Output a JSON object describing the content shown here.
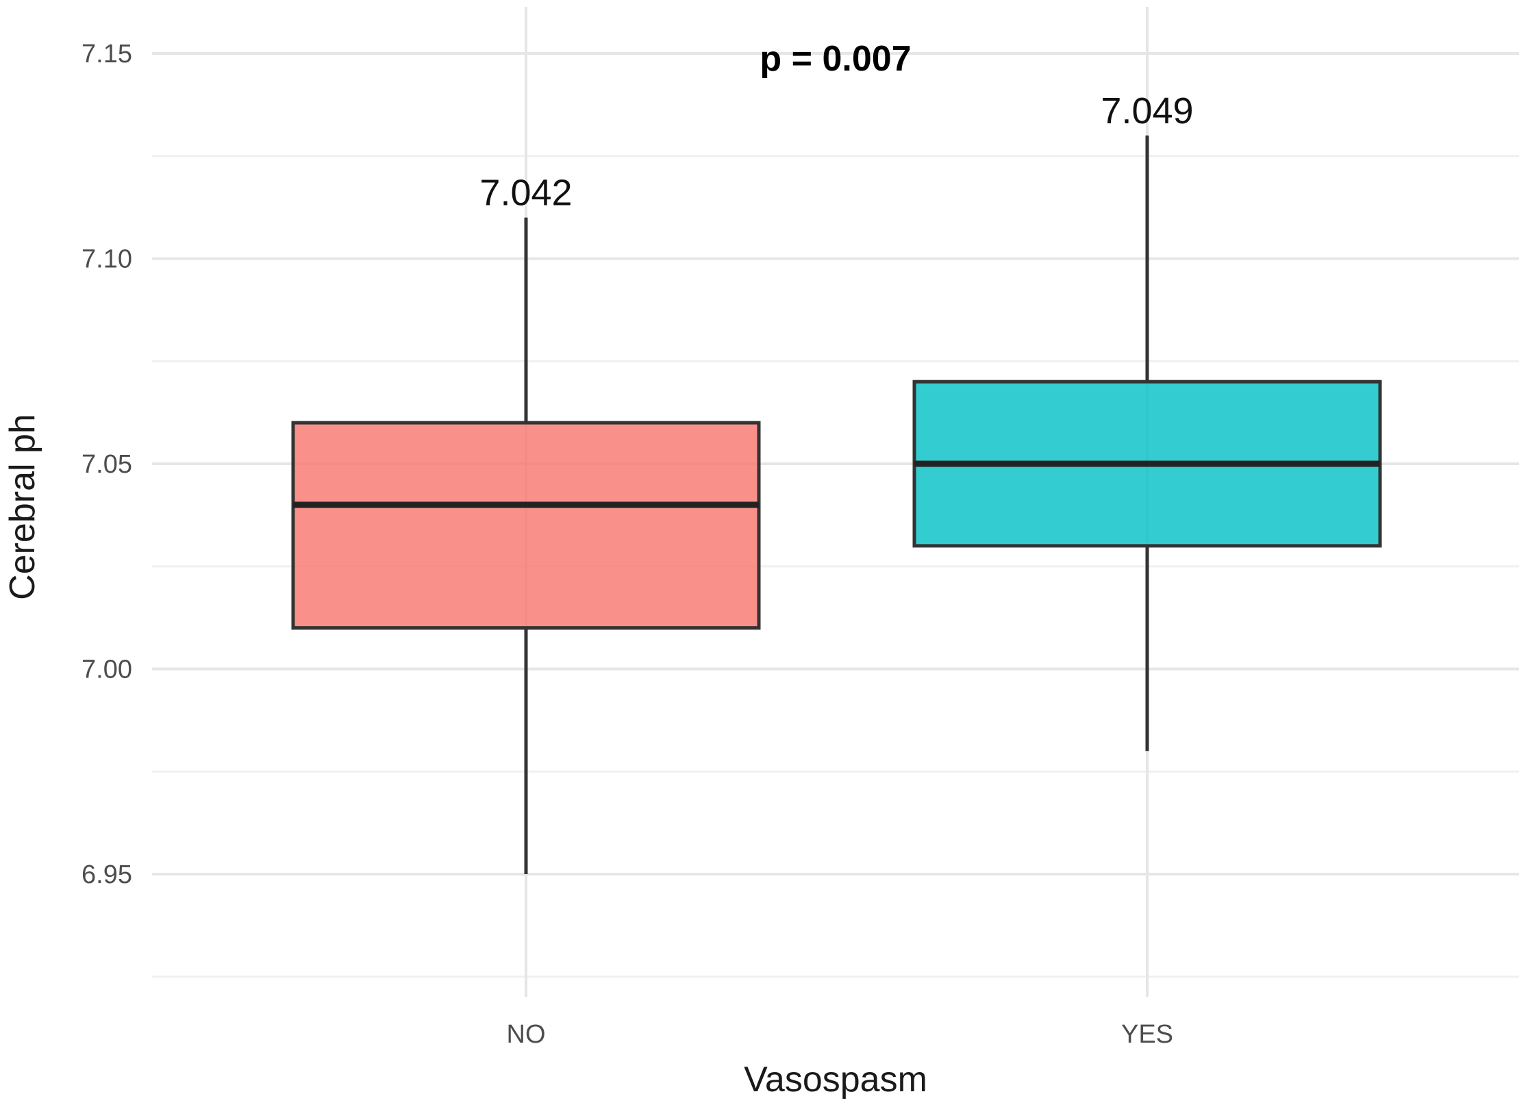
{
  "chart_data": {
    "type": "boxplot",
    "xlabel": "Vasospasm",
    "ylabel": "Cerebral ph",
    "ylim": [
      6.92,
      7.16
    ],
    "y_ticks": [
      6.95,
      7.0,
      7.05,
      7.1,
      7.15
    ],
    "y_tick_labels": [
      "6.95",
      "7.00",
      "7.05",
      "7.10",
      "7.15"
    ],
    "categories": [
      "NO",
      "YES"
    ],
    "grid": true,
    "legend": "none",
    "series": [
      {
        "category": "NO",
        "whisker_low": 6.95,
        "q1": 7.01,
        "median": 7.04,
        "q3": 7.06,
        "whisker_high": 7.11,
        "mean_label": "7.042",
        "color": "#F8766D"
      },
      {
        "category": "YES",
        "whisker_low": 6.98,
        "q1": 7.03,
        "median": 7.05,
        "q3": 7.07,
        "whisker_high": 7.13,
        "mean_label": "7.049",
        "color": "#00BFC4"
      }
    ],
    "annotations": [
      {
        "text": "p = 0.007"
      }
    ]
  }
}
